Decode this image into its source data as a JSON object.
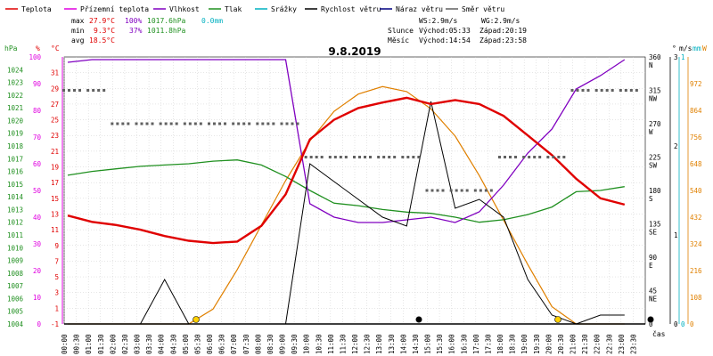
{
  "legend": [
    {
      "label": "Teplota",
      "color": "#e00000"
    },
    {
      "label": "Přízemní teplota",
      "color": "#e000e0"
    },
    {
      "label": "Vlhkost",
      "color": "#8000c0"
    },
    {
      "label": "Tlak",
      "color": "#209020"
    },
    {
      "label": "Srážky",
      "color": "#00b0c0"
    },
    {
      "label": "Rychlost větru",
      "color": "#000000"
    },
    {
      "label": "Náraz větru",
      "color": "#000080"
    },
    {
      "label": "Směr větru",
      "color": "#606060"
    }
  ],
  "stats": {
    "max_label": "max",
    "max_temp": "27.9°C",
    "max_hum": "100%",
    "max_press": "1017.6hPa",
    "max_rain": "0.0mm",
    "min_label": "min",
    "min_temp": "9.3°C",
    "min_hum": "37%",
    "min_press": "1011.8hPa",
    "avg_label": "avg",
    "avg_temp": "18.5°C"
  },
  "wind": {
    "ws": "WS:2.9m/s",
    "wg": "WG:2.9m/s"
  },
  "sun": {
    "label": "Slunce",
    "rise": "Východ:05:33",
    "set": "Západ:20:19"
  },
  "moon": {
    "label": "Měsíc",
    "rise": "Východ:14:54",
    "set": "Západ:23:58"
  },
  "axis_units": {
    "hpa": "hPa",
    "pct": "%",
    "degc": "°C",
    "deg": "°",
    "ms": "m/s",
    "mm": "mm",
    "w": "W",
    "time": "čas"
  },
  "colors": {
    "temp": "#e00000",
    "ground": "#e000e0",
    "hum": "#8000c0",
    "press": "#209020",
    "rain": "#00b0c0",
    "wind": "#000000",
    "dir": "#606060",
    "solar": "#e08000"
  },
  "chart_data": {
    "type": "line",
    "title": "9.8.2019",
    "xlabel": "čas",
    "x": [
      "00:00",
      "01:00",
      "02:00",
      "03:00",
      "04:00",
      "05:00",
      "06:00",
      "07:00",
      "08:00",
      "09:00",
      "10:00",
      "11:00",
      "12:00",
      "13:00",
      "14:00",
      "15:00",
      "16:00",
      "17:00",
      "18:00",
      "19:00",
      "20:00",
      "21:00",
      "22:00",
      "23:00"
    ],
    "x_tick_labels": [
      "00:00",
      "00:30",
      "01:00",
      "01:30",
      "02:00",
      "02:30",
      "03:00",
      "03:30",
      "04:00",
      "04:30",
      "05:00",
      "05:30",
      "06:00",
      "06:30",
      "07:00",
      "07:30",
      "08:00",
      "08:30",
      "09:00",
      "09:30",
      "10:00",
      "10:30",
      "11:00",
      "11:30",
      "12:00",
      "12:30",
      "13:00",
      "13:30",
      "14:00",
      "14:30",
      "15:00",
      "15:30",
      "16:00",
      "16:30",
      "17:00",
      "17:30",
      "18:00",
      "18:30",
      "19:00",
      "19:30",
      "20:00",
      "20:30",
      "21:00",
      "21:30",
      "22:00",
      "22:30",
      "23:00",
      "23:30"
    ],
    "axes": {
      "hpa": {
        "ylim": [
          1004,
          1025
        ],
        "ticks": [
          "1024",
          "1023",
          "1022",
          "1021",
          "1020",
          "1019",
          "1018",
          "1017",
          "1016",
          "1015",
          "1014",
          "1013",
          "1012",
          "1011",
          "1010",
          "1009",
          "1008",
          "1007",
          "1006",
          "1005",
          "1004"
        ]
      },
      "pct": {
        "ylim": [
          0,
          100
        ],
        "ticks": [
          "100",
          "90",
          "80",
          "70",
          "60",
          "50",
          "40",
          "30",
          "20",
          "10",
          "0"
        ]
      },
      "degc": {
        "ylim": [
          -1,
          33
        ],
        "ticks": [
          "31",
          "29",
          "27",
          "25",
          "23",
          "21",
          "19",
          "17",
          "15",
          "13",
          "11",
          "9",
          "7",
          "5",
          "3",
          "1",
          "-1"
        ]
      },
      "deg": {
        "ylim": [
          0,
          360
        ],
        "ticks": [
          "360",
          "315",
          "270",
          "225",
          "180",
          "135",
          "90",
          "45",
          "0"
        ],
        "dir_labels": [
          "N",
          "NW",
          "W",
          "SW",
          "S",
          "SE",
          "E",
          "NE",
          ""
        ]
      },
      "ms": {
        "ylim": [
          0,
          3
        ],
        "ticks": [
          "3",
          "2",
          "1",
          "0"
        ]
      },
      "mm": {
        "ylim": [
          0,
          1
        ],
        "ticks": [
          "1",
          "0"
        ]
      },
      "w": {
        "ylim": [
          0,
          1080
        ],
        "ticks": [
          "972",
          "864",
          "756",
          "648",
          "540",
          "432",
          "324",
          "216",
          "108",
          "0"
        ]
      }
    },
    "series": [
      {
        "name": "Teplota",
        "unit": "°C",
        "values": [
          12.8,
          12.0,
          11.6,
          11.0,
          10.2,
          9.6,
          9.3,
          9.5,
          11.5,
          15.5,
          22.5,
          25.0,
          26.5,
          27.2,
          27.8,
          27.0,
          27.5,
          27.0,
          25.5,
          23.0,
          20.5,
          17.5,
          15.0,
          14.2
        ]
      },
      {
        "name": "Vlhkost",
        "unit": "%",
        "values": [
          98,
          99,
          99,
          99,
          99,
          99,
          99,
          99,
          99,
          99,
          45,
          40,
          38,
          38,
          39,
          40,
          38,
          42,
          52,
          64,
          73,
          88,
          93,
          99
        ]
      },
      {
        "name": "Tlak",
        "unit": "hPa",
        "values": [
          1015.7,
          1016.0,
          1016.2,
          1016.4,
          1016.5,
          1016.6,
          1016.8,
          1016.9,
          1016.5,
          1015.6,
          1014.5,
          1013.5,
          1013.3,
          1013.0,
          1012.8,
          1012.7,
          1012.4,
          1012.0,
          1012.2,
          1012.6,
          1013.2,
          1014.4,
          1014.5,
          1014.8
        ]
      },
      {
        "name": "Rychlost větru",
        "unit": "m/s",
        "values": [
          0,
          0,
          0,
          0,
          0.5,
          0,
          0,
          0,
          0,
          0,
          1.8,
          1.6,
          1.4,
          1.2,
          1.1,
          2.5,
          1.3,
          1.4,
          1.2,
          0.5,
          0.1,
          0,
          0.1,
          0.1
        ]
      },
      {
        "name": "Směr větru",
        "unit": "°",
        "values": [
          315,
          315,
          270,
          270,
          270,
          270,
          270,
          270,
          270,
          270,
          225,
          225,
          225,
          225,
          225,
          180,
          180,
          180,
          225,
          225,
          225,
          315,
          315,
          315
        ]
      },
      {
        "name": "Solar",
        "unit": "W",
        "values": [
          0,
          0,
          0,
          0,
          0,
          0,
          60,
          220,
          400,
          580,
          740,
          860,
          930,
          960,
          940,
          870,
          760,
          600,
          420,
          240,
          70,
          0,
          0,
          0
        ]
      },
      {
        "name": "Srážky",
        "unit": "mm",
        "values": [
          0,
          0,
          0,
          0,
          0,
          0,
          0,
          0,
          0,
          0,
          0,
          0,
          0,
          0,
          0,
          0,
          0,
          0,
          0,
          0,
          0,
          0,
          0,
          0
        ]
      }
    ]
  }
}
